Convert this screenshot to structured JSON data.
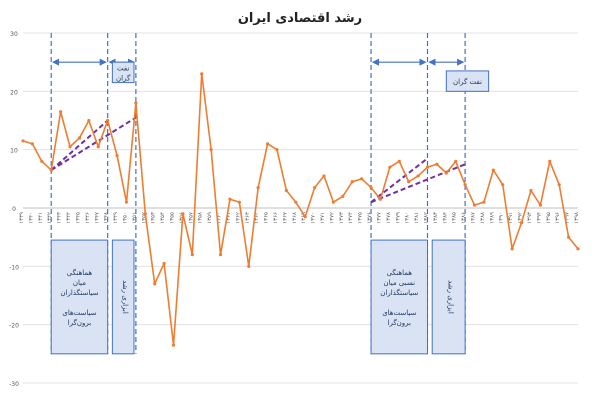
{
  "chart_data": {
    "type": "line",
    "title": "رشد اقتصادی ایران",
    "xlabel": "",
    "ylabel": "",
    "ylim": [
      -30,
      30
    ],
    "yticks": [
      30,
      20,
      10,
      0,
      -10,
      -20,
      -30
    ],
    "grid": true,
    "series_color": "#ed7d31",
    "trend_color": "#7030a0",
    "band_color": "#4472c4",
    "x": [
      1339,
      1340,
      1341,
      1342,
      1343,
      1344,
      1345,
      1346,
      1347,
      1348,
      1349,
      1350,
      1351,
      1352,
      1353,
      1354,
      1355,
      1356,
      1357,
      1358,
      1359,
      1360,
      1361,
      1362,
      1363,
      1364,
      1365,
      1366,
      1367,
      1368,
      1369,
      1370,
      1371,
      1372,
      1373,
      1374,
      1375,
      1376,
      1377,
      1378,
      1379,
      1380,
      1381,
      1382,
      1383,
      1384,
      1385,
      1386,
      1387,
      1388,
      1389,
      1390,
      1391,
      1392,
      1393,
      1394,
      1395,
      1396,
      1397,
      1398
    ],
    "series": [
      {
        "values": [
          11.5,
          11,
          8,
          6.5,
          16.5,
          10.5,
          12,
          15,
          10.5,
          15,
          9,
          1,
          18,
          -1,
          -13,
          -9.5,
          -23.5,
          -1,
          -8,
          23,
          10,
          -8,
          1.5,
          1,
          -10,
          3.5,
          11,
          10,
          3,
          1,
          -1.5,
          3.5,
          5.5,
          1,
          2,
          4.5,
          5,
          3.5,
          1.5,
          7,
          8,
          4.5,
          5.5,
          7,
          7.5,
          6,
          8,
          4,
          0.5,
          1,
          6.5,
          4,
          -7,
          -2.5,
          3,
          0.5,
          8,
          4,
          -5,
          -7
        ]
      }
    ],
    "x_tick_labels": [
      "۱۳۳۹",
      "۱۳۴۰",
      "۱۳۴۱",
      "۱۳۴۲",
      "۱۳۴۳",
      "۱۳۴۴",
      "۱۳۴۵",
      "۱۳۴۶",
      "۱۳۴۷",
      "۱۳۴۸",
      "۱۳۴۹",
      "۱۳۵۰",
      "۱۳۵۱",
      "۱۳۵۲",
      "۱۳۵۳",
      "۱۳۵۴",
      "۱۳۵۵",
      "۱۳۵۶",
      "۱۳۵۷",
      "۱۳۵۸",
      "۱۳۵۹",
      "۱۳۶۰",
      "۱۳۶۱",
      "۱۳۶۲",
      "۱۳۶۳",
      "۱۳۶۴",
      "۱۳۶۵",
      "۱۳۶۶",
      "۱۳۶۷",
      "۱۳۶۸",
      "۱۳۶۹",
      "۱۳۷۰",
      "۱۳۷۱",
      "۱۳۷۲",
      "۱۳۷۳",
      "۱۳۷۴",
      "۱۳۷۵",
      "۱۳۷۶",
      "۱۳۷۷",
      "۱۳۷۸",
      "۱۳۷۹",
      "۱۳۸۰",
      "۱۳۸۱",
      "۱۳۸۲",
      "۱۳۸۳",
      "۱۳۸۴",
      "۱۳۸۵",
      "۱۳۸۶",
      "۱۳۸۷",
      "۱۳۸۸",
      "۱۳۸۹",
      "۱۳۹۰",
      "۱۳۹۱",
      "۱۳۹۲",
      "۱۳۹۳",
      "۱۳۹۴",
      "۱۳۹۵",
      "۱۳۹۶",
      "۱۳۹۷",
      "۱۳۹۸"
    ],
    "trend_lines": [
      {
        "from": [
          1342,
          6.5
        ],
        "to": [
          1348,
          15
        ]
      },
      {
        "from": [
          1342,
          6.5
        ],
        "to": [
          1351,
          15.5
        ]
      },
      {
        "from": [
          1376,
          1
        ],
        "to": [
          1382,
          8.5
        ]
      },
      {
        "from": [
          1376,
          1
        ],
        "to": [
          1386,
          7.5
        ]
      }
    ],
    "vertical_markers": [
      1342,
      1348,
      1351,
      1376,
      1382,
      1386
    ],
    "arrows": [
      {
        "from": 1342,
        "to": 1348
      },
      {
        "from": 1348,
        "to": 1351
      },
      {
        "from": 1376,
        "to": 1382
      },
      {
        "from": 1382,
        "to": 1386
      }
    ],
    "annotations": [
      {
        "text_lines": [
          "نفت",
          "گران"
        ],
        "x_from": 1348.5,
        "x_to": 1350.8,
        "y_top": 25,
        "y_bottom": 21.5
      },
      {
        "text_lines": [
          "نفت گران"
        ],
        "x_from": 1384,
        "x_to": 1388.5,
        "y_top": 23.5,
        "y_bottom": 20
      },
      {
        "text_lines": [
          "هماهنگی",
          "میان",
          "سیاستگذاران",
          "",
          "سیاست‌های",
          "برون‌گرا"
        ],
        "x_from": 1342,
        "x_to": 1348,
        "y_top": -5.5,
        "y_bottom": -25
      },
      {
        "text_lines": [
          "ابزاری",
          "رشد"
        ],
        "x_from": 1348.5,
        "x_to": 1350.8,
        "y_top": -5.5,
        "y_bottom": -25,
        "vertical": true
      },
      {
        "text_lines": [
          "هماهنگی",
          "نسبی میان",
          "سیاستگذاران",
          "",
          "سیاست‌های",
          "برون‌گرا"
        ],
        "x_from": 1376,
        "x_to": 1382,
        "y_top": -5.5,
        "y_bottom": -25
      },
      {
        "text_lines": [
          "ابزاری",
          "رشد"
        ],
        "x_from": 1382.5,
        "x_to": 1386,
        "y_top": -5.5,
        "y_bottom": -25,
        "vertical": true
      }
    ]
  }
}
